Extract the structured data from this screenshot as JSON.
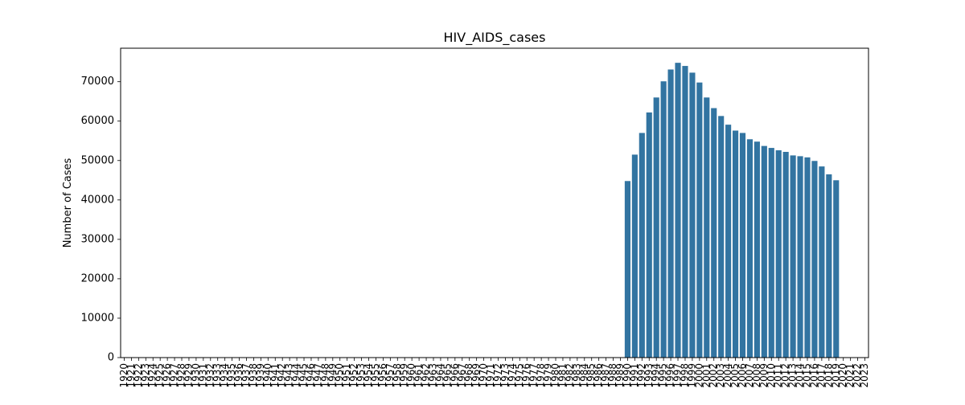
{
  "chart_data": {
    "type": "bar",
    "title": "HIV_AIDS_cases",
    "xlabel": "",
    "ylabel": "Number of Cases",
    "ylim": [
      0,
      78500
    ],
    "yticks": [
      0,
      10000,
      20000,
      30000,
      40000,
      50000,
      60000,
      70000
    ],
    "bar_color": "#3274a1",
    "grid": false,
    "legend": "none",
    "categories": [
      "1920",
      "1921",
      "1922",
      "1923",
      "1924",
      "1925",
      "1926",
      "1927",
      "1928",
      "1929",
      "1930",
      "1931",
      "1932",
      "1933",
      "1934",
      "1935",
      "1936",
      "1937",
      "1938",
      "1939",
      "1940",
      "1941",
      "1942",
      "1943",
      "1944",
      "1945",
      "1946",
      "1947",
      "1948",
      "1949",
      "1950",
      "1951",
      "1952",
      "1953",
      "1954",
      "1955",
      "1956",
      "1957",
      "1958",
      "1959",
      "1960",
      "1961",
      "1962",
      "1963",
      "1964",
      "1965",
      "1966",
      "1967",
      "1968",
      "1969",
      "1970",
      "1971",
      "1972",
      "1973",
      "1974",
      "1975",
      "1976",
      "1977",
      "1978",
      "1979",
      "1980",
      "1981",
      "1982",
      "1983",
      "1984",
      "1985",
      "1986",
      "1987",
      "1988",
      "1989",
      "1990",
      "1991",
      "1992",
      "1993",
      "1994",
      "1995",
      "1996",
      "1997",
      "1998",
      "1999",
      "2000",
      "2001",
      "2002",
      "2003",
      "2004",
      "2005",
      "2006",
      "2007",
      "2008",
      "2009",
      "2010",
      "2011",
      "2012",
      "2013",
      "2014",
      "2015",
      "2016",
      "2017",
      "2018",
      "2019",
      "2020",
      "2021",
      "2022",
      "2023"
    ],
    "values": [
      null,
      null,
      null,
      null,
      null,
      null,
      null,
      null,
      null,
      null,
      null,
      null,
      null,
      null,
      null,
      null,
      null,
      null,
      null,
      null,
      null,
      null,
      null,
      null,
      null,
      null,
      null,
      null,
      null,
      null,
      null,
      null,
      null,
      null,
      null,
      null,
      null,
      null,
      null,
      null,
      null,
      null,
      null,
      null,
      null,
      null,
      null,
      null,
      null,
      null,
      null,
      null,
      null,
      null,
      null,
      null,
      null,
      null,
      null,
      null,
      null,
      null,
      null,
      null,
      null,
      null,
      null,
      null,
      null,
      null,
      44800,
      51500,
      57000,
      62200,
      66000,
      70100,
      73100,
      74800,
      74000,
      72300,
      69800,
      66000,
      63300,
      61300,
      59100,
      57600,
      57000,
      55400,
      54800,
      53700,
      53200,
      52600,
      52200,
      51300,
      51100,
      50800,
      49900,
      48500,
      46500,
      45000,
      null,
      null,
      null,
      null
    ]
  }
}
